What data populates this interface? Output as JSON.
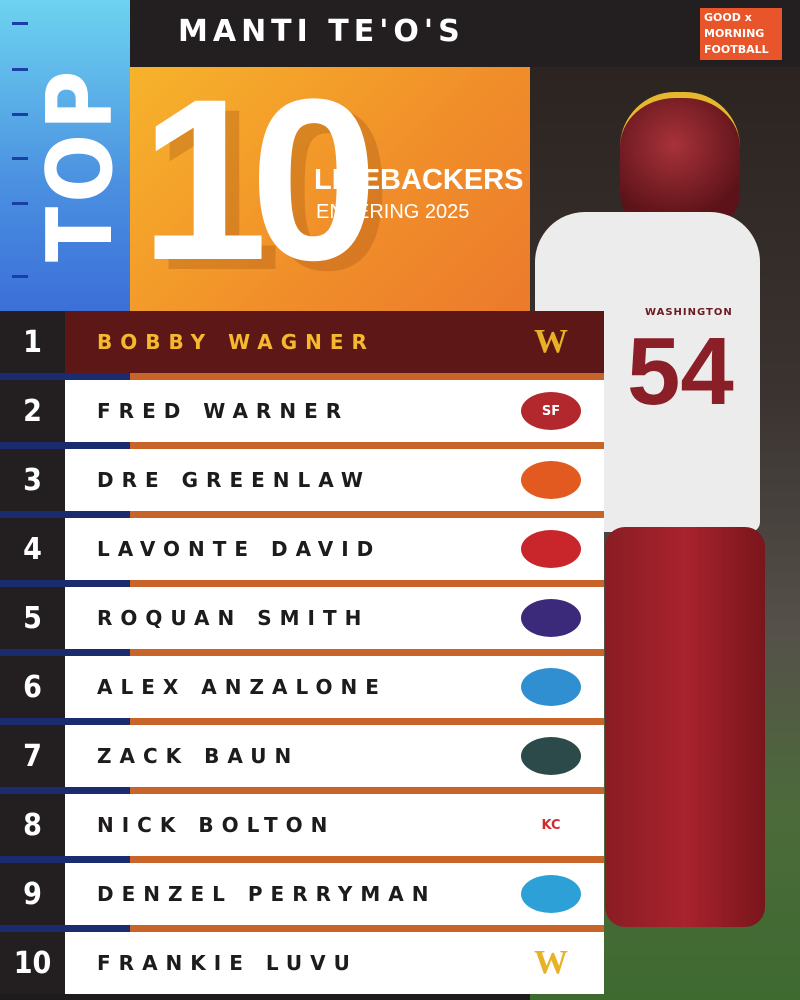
{
  "header": {
    "title": "MANTI TE'O'S",
    "brand_logo": "GOOD x MORNING FOOTBALL"
  },
  "banner": {
    "top": "TOP",
    "ten": "10",
    "position": "LINEBACKERS",
    "subtitle": "ENTERING 2025"
  },
  "colors": {
    "highlight_row": "#5d1717",
    "highlight_text": "#f5b82e",
    "banner_orange": "#f08d2a",
    "side_blue": "#4a8fe0"
  },
  "rankings": [
    {
      "rank": "1",
      "name": "BOBBY WAGNER",
      "team_logo": "commanders-logo-icon"
    },
    {
      "rank": "2",
      "name": "FRED WARNER",
      "team_logo": "49ers-logo-icon"
    },
    {
      "rank": "3",
      "name": "DRE GREENLAW",
      "team_logo": "broncos-logo-icon"
    },
    {
      "rank": "4",
      "name": "LAVONTE DAVID",
      "team_logo": "buccaneers-logo-icon"
    },
    {
      "rank": "5",
      "name": "ROQUAN SMITH",
      "team_logo": "ravens-logo-icon"
    },
    {
      "rank": "6",
      "name": "ALEX ANZALONE",
      "team_logo": "lions-logo-icon"
    },
    {
      "rank": "7",
      "name": "ZACK BAUN",
      "team_logo": "eagles-logo-icon"
    },
    {
      "rank": "8",
      "name": "NICK BOLTON",
      "team_logo": "chiefs-logo-icon"
    },
    {
      "rank": "9",
      "name": "DENZEL PERRYMAN",
      "team_logo": "chargers-logo-icon"
    },
    {
      "rank": "10",
      "name": "FRANKIE LUVU",
      "team_logo": "commanders-logo-icon"
    }
  ],
  "photo": {
    "jersey_text": "WASHINGTON",
    "jersey_number": "54"
  }
}
